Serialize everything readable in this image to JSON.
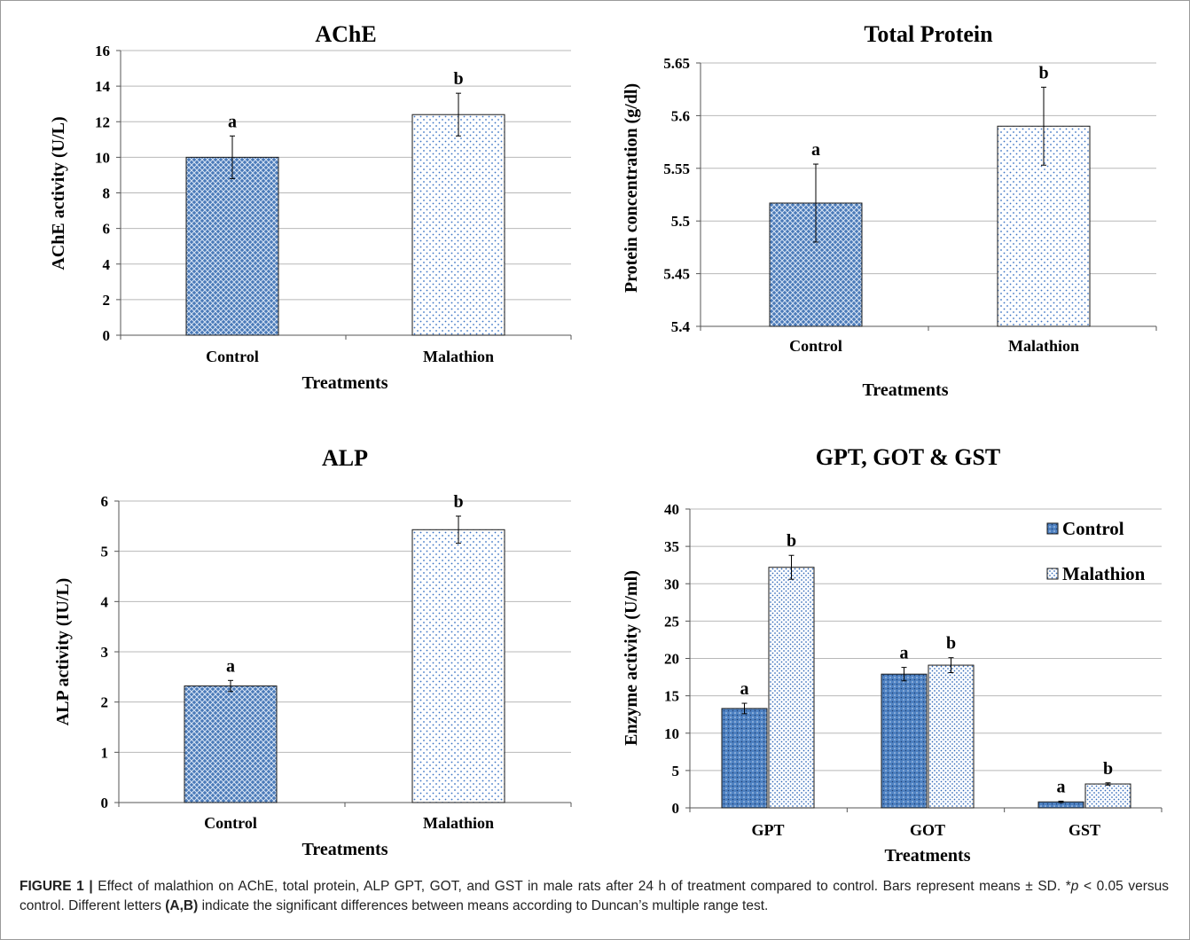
{
  "palette": {
    "control": "#4a7ab8",
    "control_dot": "#1d3f73",
    "malathion_dot": "#3a73c4",
    "grid": "#b8b8b8",
    "text": "#000000"
  },
  "chart_data": [
    {
      "type": "bar",
      "title": "AChE",
      "xlabel": "Treatments",
      "ylabel": "AChE activity (U/L)",
      "ylim": [
        0,
        16
      ],
      "yticks": [
        "0",
        "2",
        "4",
        "6",
        "8",
        "10",
        "12",
        "14",
        "16"
      ],
      "categories": [
        "Control",
        "Malathion"
      ],
      "series": [
        {
          "values": [
            10.0,
            12.4
          ],
          "errors": [
            1.2,
            1.2
          ],
          "letters": [
            "a",
            "b"
          ],
          "patterns": [
            "control",
            "malathion"
          ]
        }
      ],
      "grid": true,
      "legend": null
    },
    {
      "type": "bar",
      "title": "Total Protein",
      "xlabel": "Treatments",
      "ylabel": "Protein concentration (g/dl)",
      "ylim": [
        5.4,
        5.65
      ],
      "yticks": [
        "5.4",
        "5.45",
        "5.5",
        "5.55",
        "5.6",
        "5.65"
      ],
      "categories": [
        "Control",
        "Malathion"
      ],
      "series": [
        {
          "values": [
            5.517,
            5.59
          ],
          "errors": [
            0.037,
            0.037
          ],
          "letters": [
            "a",
            "b"
          ],
          "patterns": [
            "control",
            "malathion"
          ]
        }
      ],
      "grid": true,
      "legend": null
    },
    {
      "type": "bar",
      "title": "ALP",
      "xlabel": "Treatments",
      "ylabel": "ALP activity (IU/L)",
      "ylim": [
        0,
        6
      ],
      "yticks": [
        "0",
        "1",
        "2",
        "3",
        "4",
        "5",
        "6"
      ],
      "categories": [
        "Control",
        "Malathion"
      ],
      "series": [
        {
          "values": [
            2.32,
            5.43
          ],
          "errors": [
            0.11,
            0.27
          ],
          "letters": [
            "a",
            "b"
          ],
          "patterns": [
            "control",
            "malathion"
          ]
        }
      ],
      "grid": true,
      "legend": null
    },
    {
      "type": "bar",
      "title": "GPT, GOT & GST",
      "xlabel": "Treatments",
      "ylabel": "Enzyme activity (U/ml)",
      "ylim": [
        0,
        40
      ],
      "yticks": [
        "0",
        "5",
        "10",
        "15",
        "20",
        "25",
        "30",
        "35",
        "40"
      ],
      "categories": [
        "GPT",
        "GOT",
        "GST"
      ],
      "series": [
        {
          "name": "Control",
          "values": [
            13.3,
            17.9,
            0.8
          ],
          "errors": [
            0.7,
            0.9,
            0.1
          ],
          "letters": [
            "a",
            "a",
            "a"
          ],
          "pattern": "control2"
        },
        {
          "name": "Malathion",
          "values": [
            32.2,
            19.1,
            3.2
          ],
          "errors": [
            1.6,
            1.0,
            0.15
          ],
          "letters": [
            "b",
            "b",
            "b"
          ],
          "pattern": "malathion2"
        }
      ],
      "grid": true,
      "legend": "top-right"
    }
  ],
  "caption": {
    "label": "FIGURE 1 |",
    "text": " Effect of malathion on AChE, total protein, ALP GPT, GOT, and GST in male rats after 24 h of treatment compared to control. Bars represent means ± SD. *",
    "p_symbol": "p",
    "text2": " < 0.05 versus control. Different letters ",
    "letters_ref": "(A,B)",
    "text3": " indicate the significant differences between means according to Duncan’s multiple range test."
  }
}
